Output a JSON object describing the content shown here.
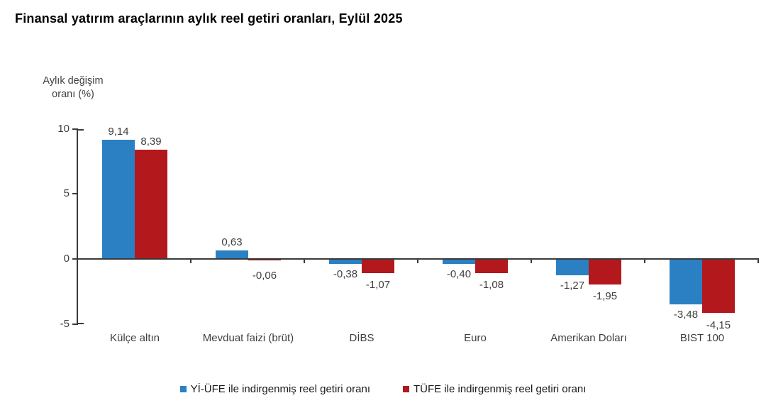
{
  "header": {
    "title": "Finansal yatırım araçlarının aylık reel getiri oranları, Eylül 2025"
  },
  "colors": {
    "series_blue": "#2b80c4",
    "series_red": "#b2181c",
    "axis": "#3a3a3a",
    "text": "#3f3f3f"
  },
  "chart_data": {
    "type": "bar",
    "title": "Finansal yatırım araçlarının aylık reel getiri oranları, Eylül 2025",
    "ylabel": "Aylık değişim oranı (%)",
    "ylabel_lines": [
      "Aylık değişim",
      "oranı (%)"
    ],
    "xlabel": "",
    "categories": [
      "Külçe altın",
      "Mevduat faizi (brüt)",
      "DİBS",
      "Euro",
      "Amerikan Doları",
      "BIST 100"
    ],
    "series": [
      {
        "name": "Yİ-ÜFE ile indirgenmiş reel getiri oranı",
        "color": "#2b80c4",
        "values": [
          9.14,
          0.63,
          -0.38,
          -0.4,
          -1.27,
          -3.48
        ],
        "labels": [
          "9,14",
          "0,63",
          "-0,38",
          "-0,40",
          "-1,27",
          "-3,48"
        ]
      },
      {
        "name": "TÜFE ile indirgenmiş reel getiri oranı",
        "color": "#b2181c",
        "values": [
          8.39,
          -0.06,
          -1.07,
          -1.08,
          -1.95,
          -4.15
        ],
        "labels": [
          "8,39",
          "-0,06",
          "-1,07",
          "-1,08",
          "-1,95",
          "-4,15"
        ]
      }
    ],
    "yticks": [
      10,
      5,
      0,
      -5
    ],
    "ytick_labels": [
      "10",
      "5",
      "0",
      "-5"
    ],
    "ylim": [
      -5,
      10
    ],
    "grid": false,
    "legend_position": "bottom"
  }
}
